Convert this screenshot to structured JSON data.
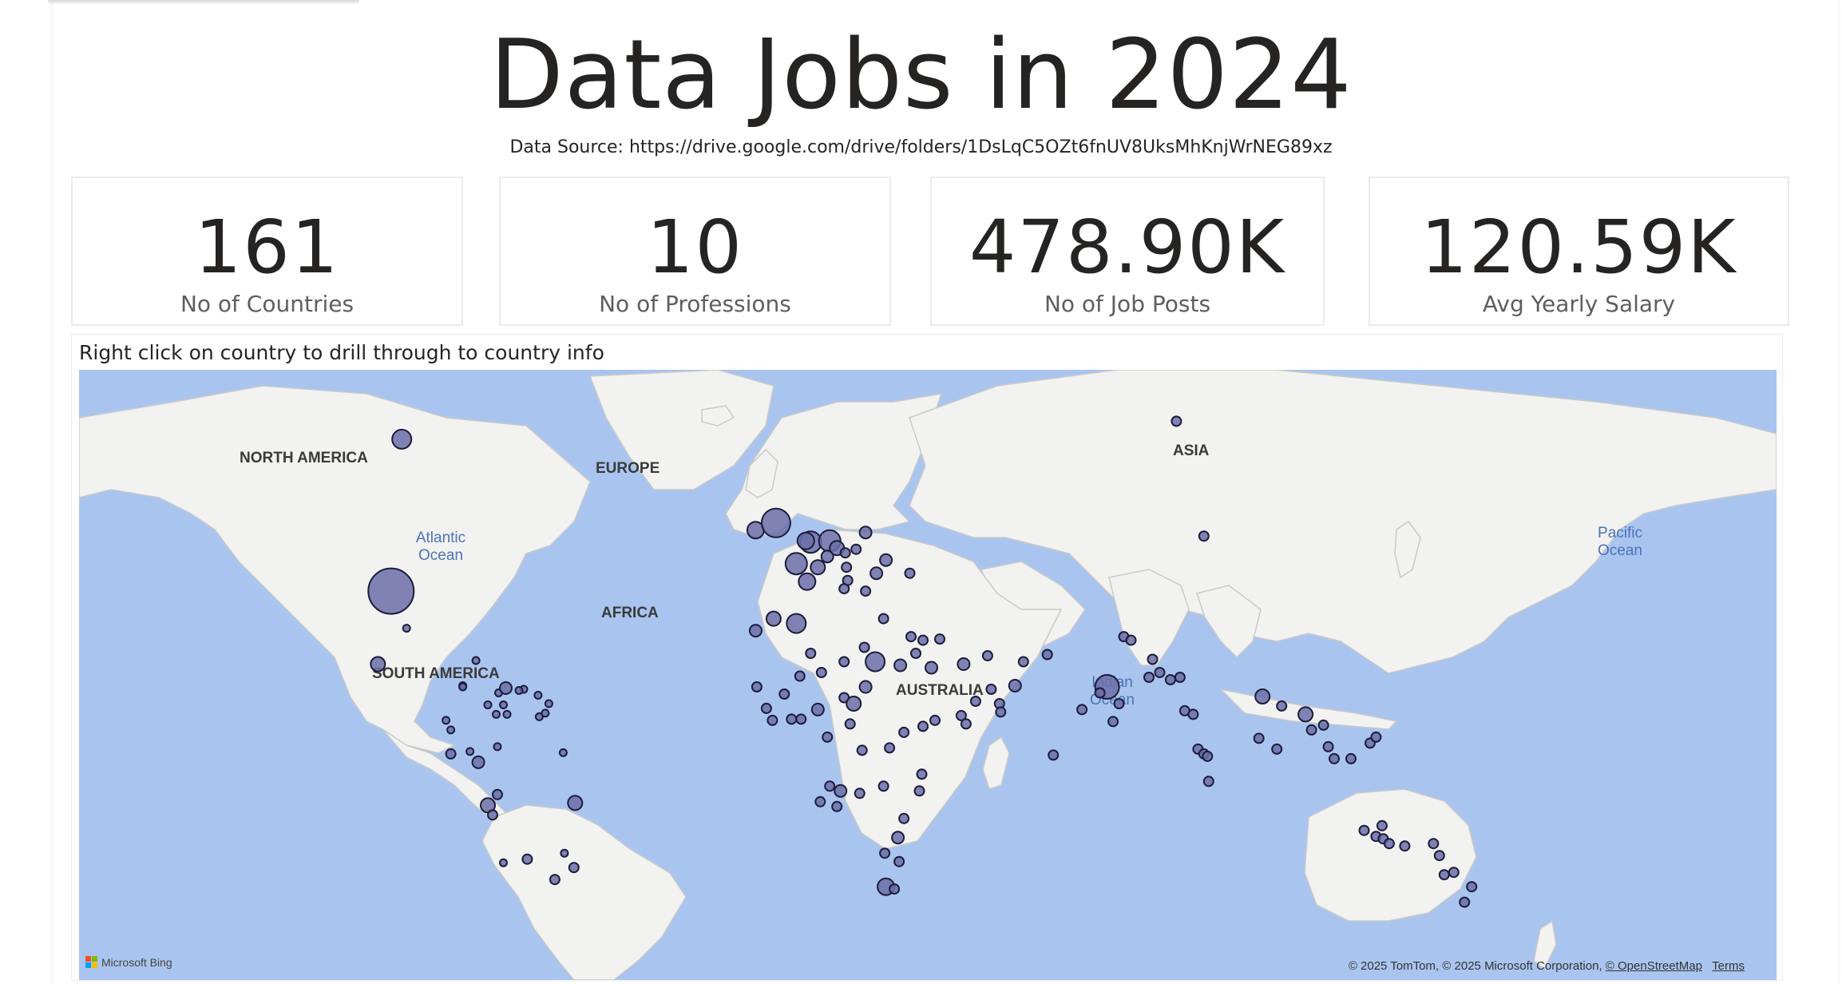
{
  "report": {
    "title": "Data Jobs in 2024",
    "source": "Data Source: https://drive.google.com/drive/folders/1DsLqC5OZt6fnUV8UksMhKnjWrNEG89xz"
  },
  "kpis": [
    {
      "value": "161",
      "label": "No of Countries"
    },
    {
      "value": "10",
      "label": "No of Professions"
    },
    {
      "value": "478.90K",
      "label": "No of Job Posts"
    },
    {
      "value": "120.59K",
      "label": "Avg Yearly Salary"
    }
  ],
  "map": {
    "caption": "Right click on country to drill through to country info",
    "continents": [
      "NORTH AMERICA",
      "EUROPE",
      "ASIA",
      "AFRICA",
      "SOUTH AMERICA",
      "AUSTRALIA"
    ],
    "oceans": [
      "Atlantic",
      "Ocean",
      "Pacific",
      "Ocean",
      "Indian",
      "Ocean"
    ],
    "attribution": "© 2025 TomTom, © 2025 Microsoft Corporation,",
    "osm_link": "© OpenStreetMap",
    "terms_link": "Terms",
    "brand": "Microsoft Bing",
    "colors": {
      "water": "#a9c5ef",
      "land": "#f2f2f0",
      "bubble_fill": "#6b6fa8",
      "bubble_stroke": "#1c1c3a"
    }
  }
}
